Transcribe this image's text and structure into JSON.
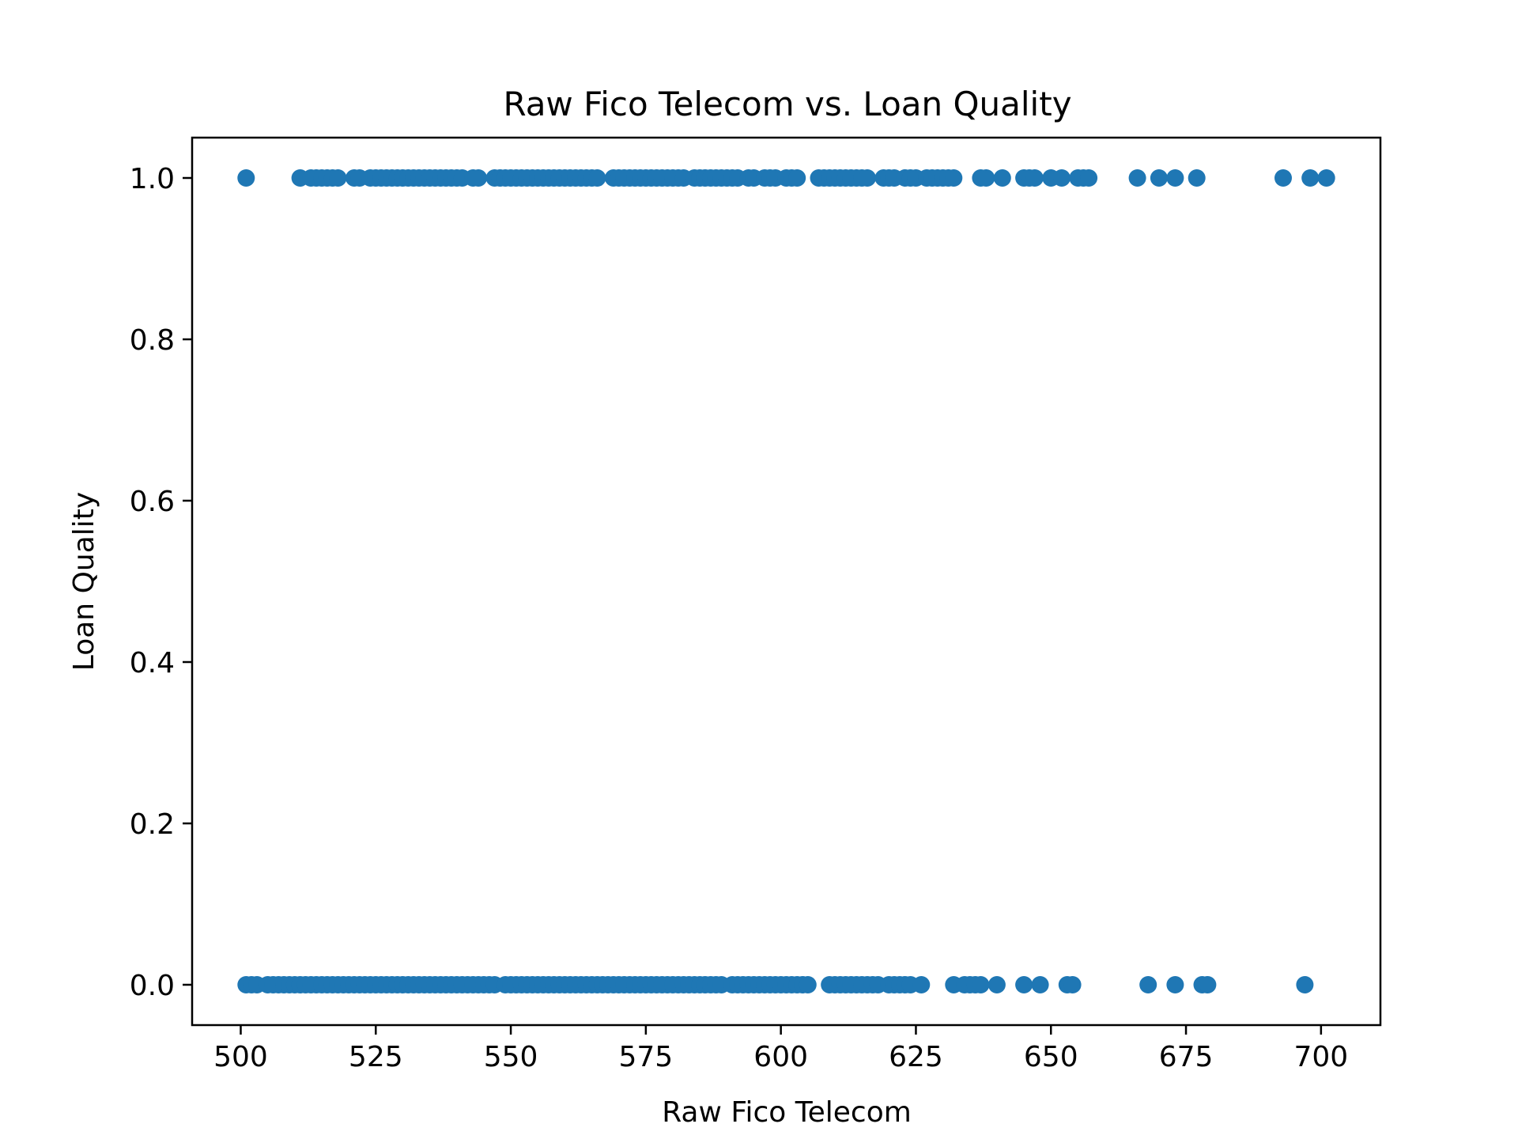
{
  "chart_data": {
    "type": "scatter",
    "title": "Raw Fico Telecom vs. Loan Quality",
    "xlabel": "Raw Fico Telecom",
    "ylabel": "Loan Quality",
    "xlim": [
      491,
      711
    ],
    "ylim": [
      -0.05,
      1.05
    ],
    "xticks": [
      "500",
      "525",
      "550",
      "575",
      "600",
      "625",
      "650",
      "675",
      "700"
    ],
    "yticks": [
      "0.0",
      "0.2",
      "0.4",
      "0.6",
      "0.8",
      "1.0"
    ],
    "grid": false,
    "marker_color": "#1f77b4",
    "series": [
      {
        "y": 1,
        "x": [
          501,
          511,
          513,
          514,
          515,
          516,
          517,
          518,
          521,
          522,
          524,
          525,
          526,
          527,
          528,
          529,
          530,
          531,
          532,
          533,
          534,
          535,
          536,
          537,
          538,
          539,
          540,
          541,
          543,
          544,
          547,
          548,
          549,
          550,
          551,
          552,
          553,
          554,
          555,
          556,
          557,
          558,
          559,
          560,
          561,
          562,
          563,
          564,
          565,
          566,
          569,
          570,
          571,
          572,
          573,
          574,
          575,
          576,
          577,
          578,
          579,
          580,
          581,
          582,
          584,
          585,
          586,
          587,
          588,
          589,
          590,
          591,
          592,
          594,
          595,
          597,
          598,
          599,
          601,
          602,
          603,
          607,
          608,
          609,
          610,
          611,
          612,
          613,
          614,
          615,
          616,
          619,
          620,
          621,
          623,
          624,
          625,
          627,
          628,
          629,
          630,
          631,
          632,
          637,
          638,
          641,
          645,
          646,
          647,
          650,
          652,
          655,
          656,
          657,
          666,
          670,
          673,
          677,
          693,
          698,
          701
        ]
      },
      {
        "y": 0,
        "x": [
          501,
          502,
          503,
          505,
          506,
          507,
          508,
          509,
          510,
          511,
          512,
          513,
          514,
          515,
          516,
          517,
          518,
          519,
          520,
          521,
          522,
          523,
          524,
          525,
          526,
          527,
          528,
          529,
          530,
          531,
          532,
          533,
          534,
          535,
          536,
          537,
          538,
          539,
          540,
          541,
          542,
          543,
          544,
          545,
          546,
          547,
          549,
          550,
          551,
          552,
          553,
          554,
          555,
          556,
          557,
          558,
          559,
          560,
          561,
          562,
          563,
          564,
          565,
          566,
          567,
          568,
          569,
          570,
          571,
          572,
          573,
          574,
          575,
          576,
          577,
          578,
          579,
          580,
          581,
          582,
          583,
          584,
          585,
          586,
          587,
          588,
          589,
          591,
          592,
          593,
          594,
          595,
          596,
          597,
          598,
          599,
          600,
          601,
          602,
          603,
          604,
          605,
          609,
          610,
          611,
          612,
          613,
          614,
          615,
          616,
          617,
          618,
          620,
          621,
          622,
          623,
          624,
          626,
          632,
          634,
          635,
          636,
          637,
          640,
          645,
          648,
          653,
          654,
          668,
          673,
          678,
          679,
          697
        ]
      }
    ]
  }
}
